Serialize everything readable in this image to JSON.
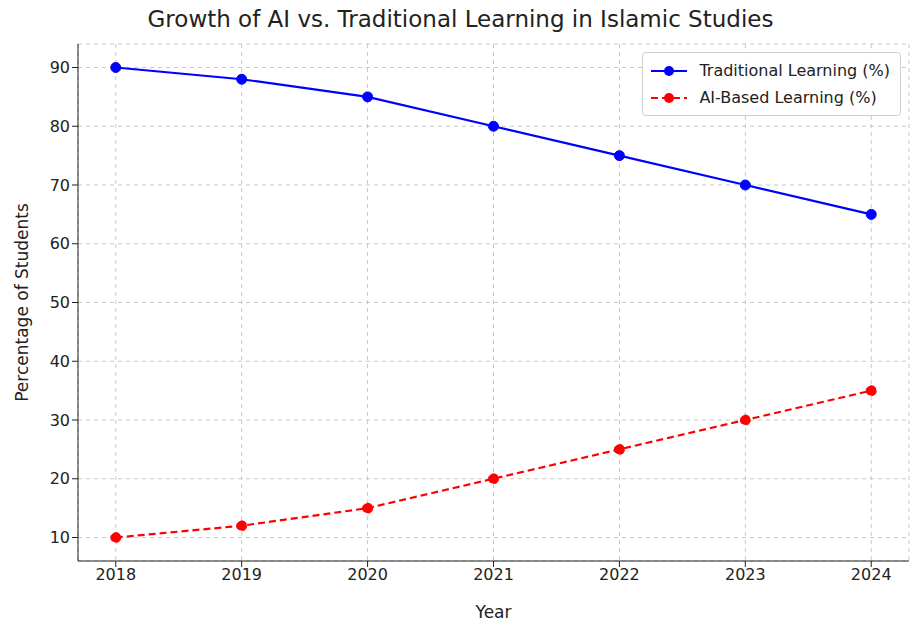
{
  "chart_data": {
    "type": "line",
    "title": "Growth of AI vs. Traditional Learning in Islamic Studies",
    "x_label": "Year",
    "y_label": "Percentage of Students",
    "x": [
      2018,
      2019,
      2020,
      2021,
      2022,
      2023,
      2024
    ],
    "series": [
      {
        "name": "Traditional Learning (%)",
        "color": "#0000ff",
        "values": [
          90,
          88,
          85,
          80,
          75,
          70,
          65
        ],
        "marker": "circle",
        "line_style": "solid"
      },
      {
        "name": "AI-Based Learning (%)",
        "color": "#ff0000",
        "values": [
          10,
          12,
          15,
          20,
          25,
          30,
          35
        ],
        "marker": "circle",
        "line_style": "dashed"
      }
    ],
    "xlim": [
      2017.7,
      2024.3
    ],
    "xticks": [
      2018,
      2019,
      2020,
      2021,
      2022,
      2023,
      2024
    ],
    "ylim": [
      6,
      94
    ],
    "yticks": [
      10,
      20,
      30,
      40,
      50,
      60,
      70,
      80,
      90
    ],
    "grid": true,
    "legend": "upper right"
  }
}
